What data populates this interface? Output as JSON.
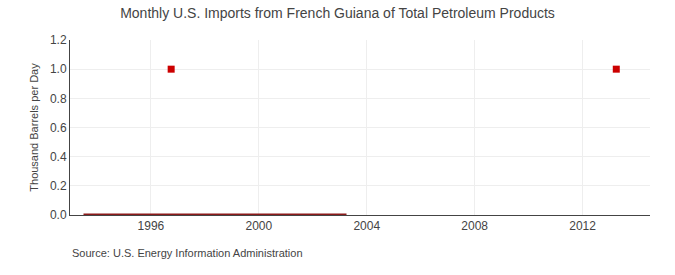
{
  "chart_data": {
    "type": "line",
    "title": "Monthly U.S. Imports from French Guiana of Total Petroleum Products",
    "ylabel": "Thousand Barrels per Day",
    "annotations": [
      "Source: U.S. Energy Information Administration"
    ],
    "series": [
      {
        "type": "line",
        "line_style": "solid",
        "color": "#8b1a1a",
        "x": [
          1993.5,
          2003.25
        ],
        "values": [
          0.0,
          0.0
        ]
      },
      {
        "type": "scatter",
        "marker": "square",
        "color": "#cc0000",
        "x": [
          1996.75,
          2013.25
        ],
        "values": [
          1.0,
          1.0
        ]
      }
    ],
    "xlim": [
      1993.0,
      2014.5
    ],
    "xticks": [
      1996,
      2000,
      2004,
      2008,
      2012
    ],
    "ylim": [
      0.0,
      1.2
    ],
    "yticks": [
      {
        "value": 0.0,
        "label": "0.0"
      },
      0.2,
      0.4,
      0.6,
      0.8,
      {
        "value": 1.0,
        "label": "1.0"
      },
      1.2
    ],
    "grid": true
  }
}
